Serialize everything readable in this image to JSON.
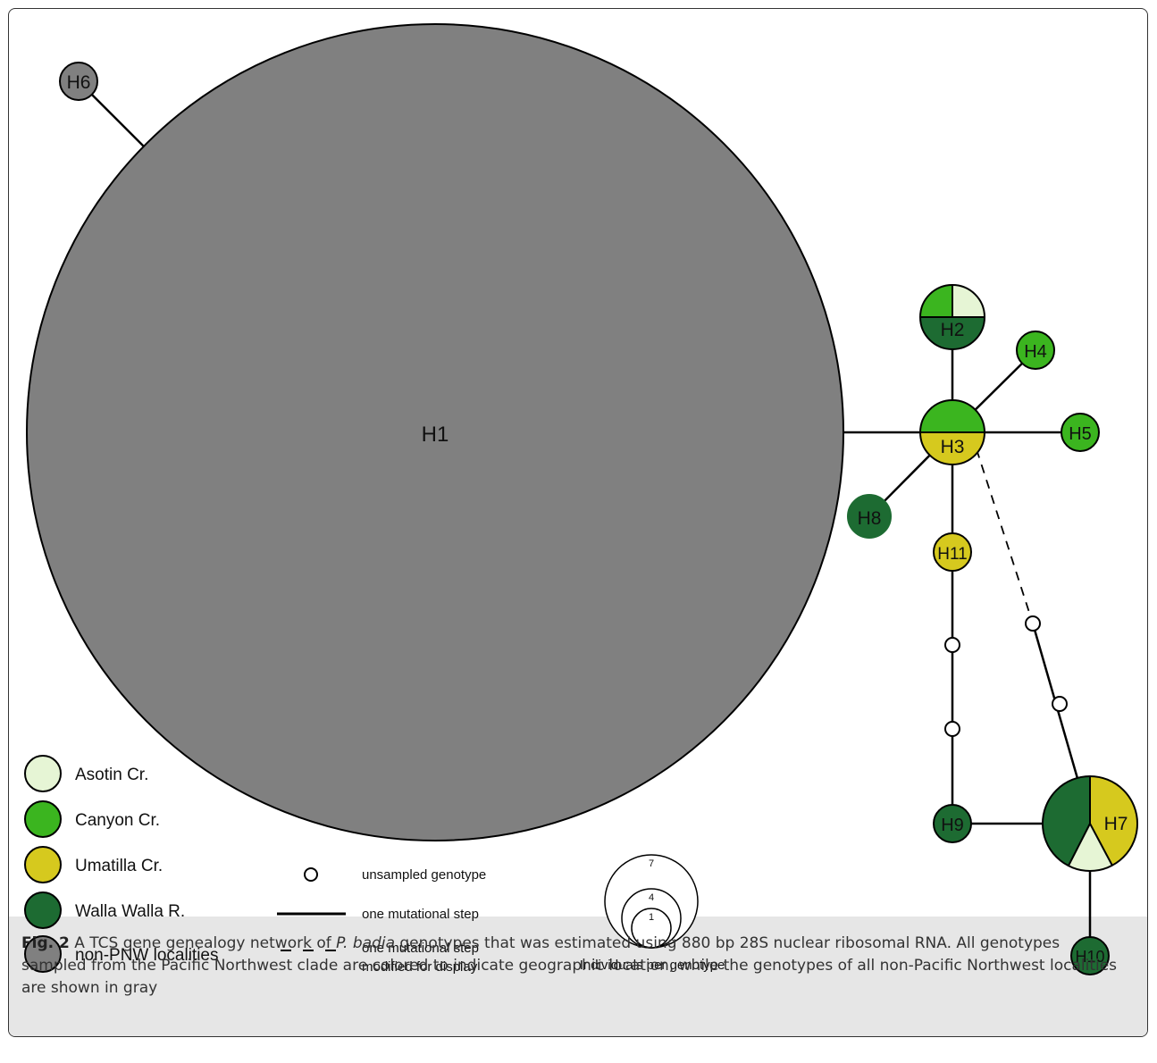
{
  "colors": {
    "asotin": "#e6f5d5",
    "canyon": "#3bb51f",
    "umatilla": "#d6c91e",
    "walla": "#1d6b32",
    "nonpnw": "#808080"
  },
  "nodes": {
    "h1": "H1",
    "h2": "H2",
    "h3": "H3",
    "h4": "H4",
    "h5": "H5",
    "h6": "H6",
    "h7": "H7",
    "h8": "H8",
    "h9": "H9",
    "h10": "H10",
    "h11": "H11"
  },
  "legend": {
    "asotin": "Asotin Cr.",
    "canyon": "Canyon Cr.",
    "umatilla": "Umatilla Cr.",
    "walla": "Walla Walla R.",
    "nonpnw": "non-PNW localities"
  },
  "key": {
    "unsampled": "unsampled genotype",
    "step": "one mutational step",
    "modified_line1": "one mutational step",
    "modified_line2": "modified for display"
  },
  "size_key": {
    "title": "Individuals per genotype",
    "values": [
      "7",
      "4",
      "1"
    ]
  },
  "caption": {
    "fig": "Fig. 2",
    "text1": " A TCS gene genealogy network of ",
    "species": "P. badia",
    "text2": " genotypes that was estimated using 880 bp 28S nuclear ribosomal RNA. All genotypes sampled from the Pacific Northwest clade are colored to indicate geographic location, while the genotypes of all non-Pacific Northwest localities are shown in gray"
  }
}
